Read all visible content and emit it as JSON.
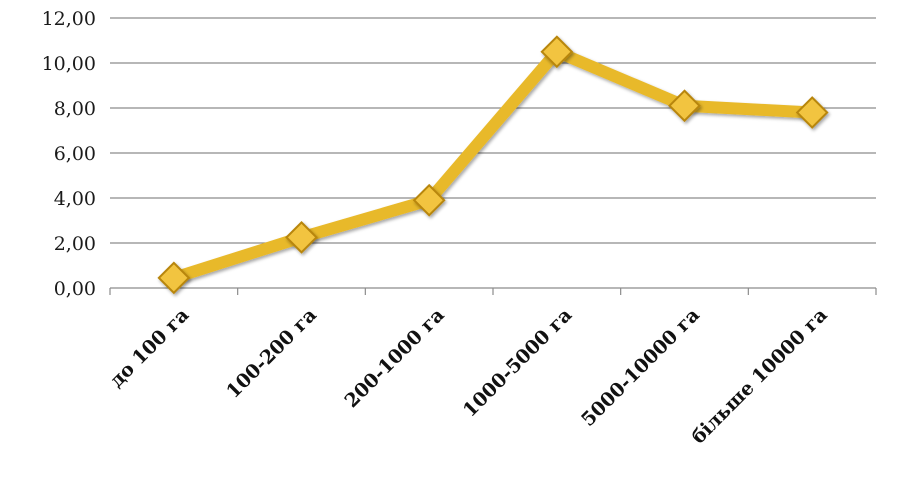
{
  "chart_data": {
    "type": "line",
    "title": "",
    "xlabel": "",
    "ylabel": "",
    "categories": [
      "до 100 га",
      "100-200 га",
      "200-1000 га",
      "1000-5000 га",
      "5000-10000 га",
      "більше 10000 га"
    ],
    "series": [
      {
        "values": [
          0.45,
          2.25,
          3.9,
          10.5,
          8.1,
          7.8
        ]
      }
    ],
    "ylim": [
      0,
      12
    ],
    "y_ticks": [
      "0,00",
      "2,00",
      "4,00",
      "6,00",
      "8,00",
      "10,00",
      "12,00"
    ],
    "grid": true,
    "legend": "none",
    "colors": {
      "line": "#e8b92c",
      "marker_fill": "#f2c440",
      "marker_stroke": "#b8860b",
      "grid": "#8c8c8c",
      "axis": "#8c8c8c"
    }
  }
}
